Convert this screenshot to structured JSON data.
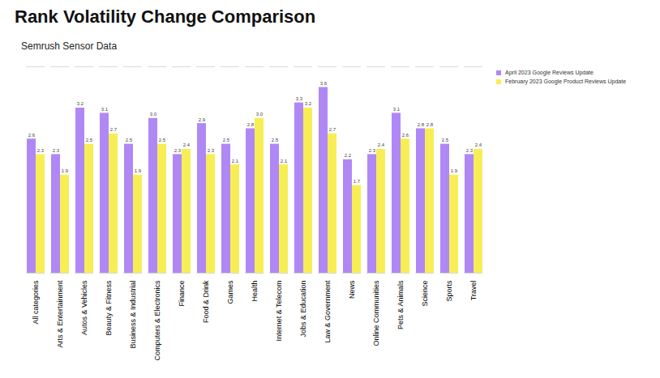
{
  "chart_data": {
    "type": "bar",
    "title": "Rank Volatility Change Comparison",
    "subtitle": "Semrush Sensor Data",
    "categories": [
      "All categories",
      "Arts & Entertainment",
      "Autos & Vehicles",
      "Beauty & Fitness",
      "Business & Industrial",
      "Computers & Electronics",
      "Finance",
      "Food & Drink",
      "Games",
      "Health",
      "Internet & Telecom",
      "Jobs & Education",
      "Law & Government",
      "News",
      "Online Communities",
      "Pets & Animals",
      "Science",
      "Sports",
      "Travel"
    ],
    "series": [
      {
        "name": "April 2023 Google Reviews Update",
        "color": "#b088f5",
        "values": [
          2.6,
          2.3,
          3.2,
          3.1,
          2.5,
          3.0,
          2.3,
          2.9,
          2.5,
          2.8,
          2.5,
          3.3,
          3.6,
          2.2,
          2.3,
          3.1,
          2.8,
          2.5,
          2.3
        ],
        "value_labels": [
          "2.6",
          "2.3",
          "3.2",
          "3.1",
          "2.5",
          "3.0",
          "2.3",
          "2.9",
          "2.5",
          "2.8",
          "2.5",
          "3.3",
          "3.6",
          "2.2",
          "2.3",
          "3.1",
          "2.8",
          "2.5",
          "2.3"
        ]
      },
      {
        "name": "February 2023 Google Product Reviews Update",
        "color": "#f7ee55",
        "values": [
          2.3,
          1.9,
          2.5,
          2.7,
          1.9,
          2.5,
          2.4,
          2.3,
          2.1,
          3.0,
          2.1,
          3.2,
          2.7,
          1.7,
          2.4,
          2.6,
          2.8,
          1.9,
          2.4
        ],
        "value_labels": [
          "2.3",
          "1.9",
          "2.5",
          "2.7",
          "1.9",
          "2.5",
          "2.4",
          "2.3",
          "2.1",
          "3.0",
          "2.1",
          "3.2",
          "2.7",
          "1.7",
          "2.4",
          "2.6",
          "2.8",
          "1.9",
          "2.4"
        ]
      }
    ],
    "ylim": [
      0,
      4
    ],
    "yticks": [],
    "tick_labels": "x",
    "data_labels": true,
    "legend": "top-right",
    "grid": false
  }
}
